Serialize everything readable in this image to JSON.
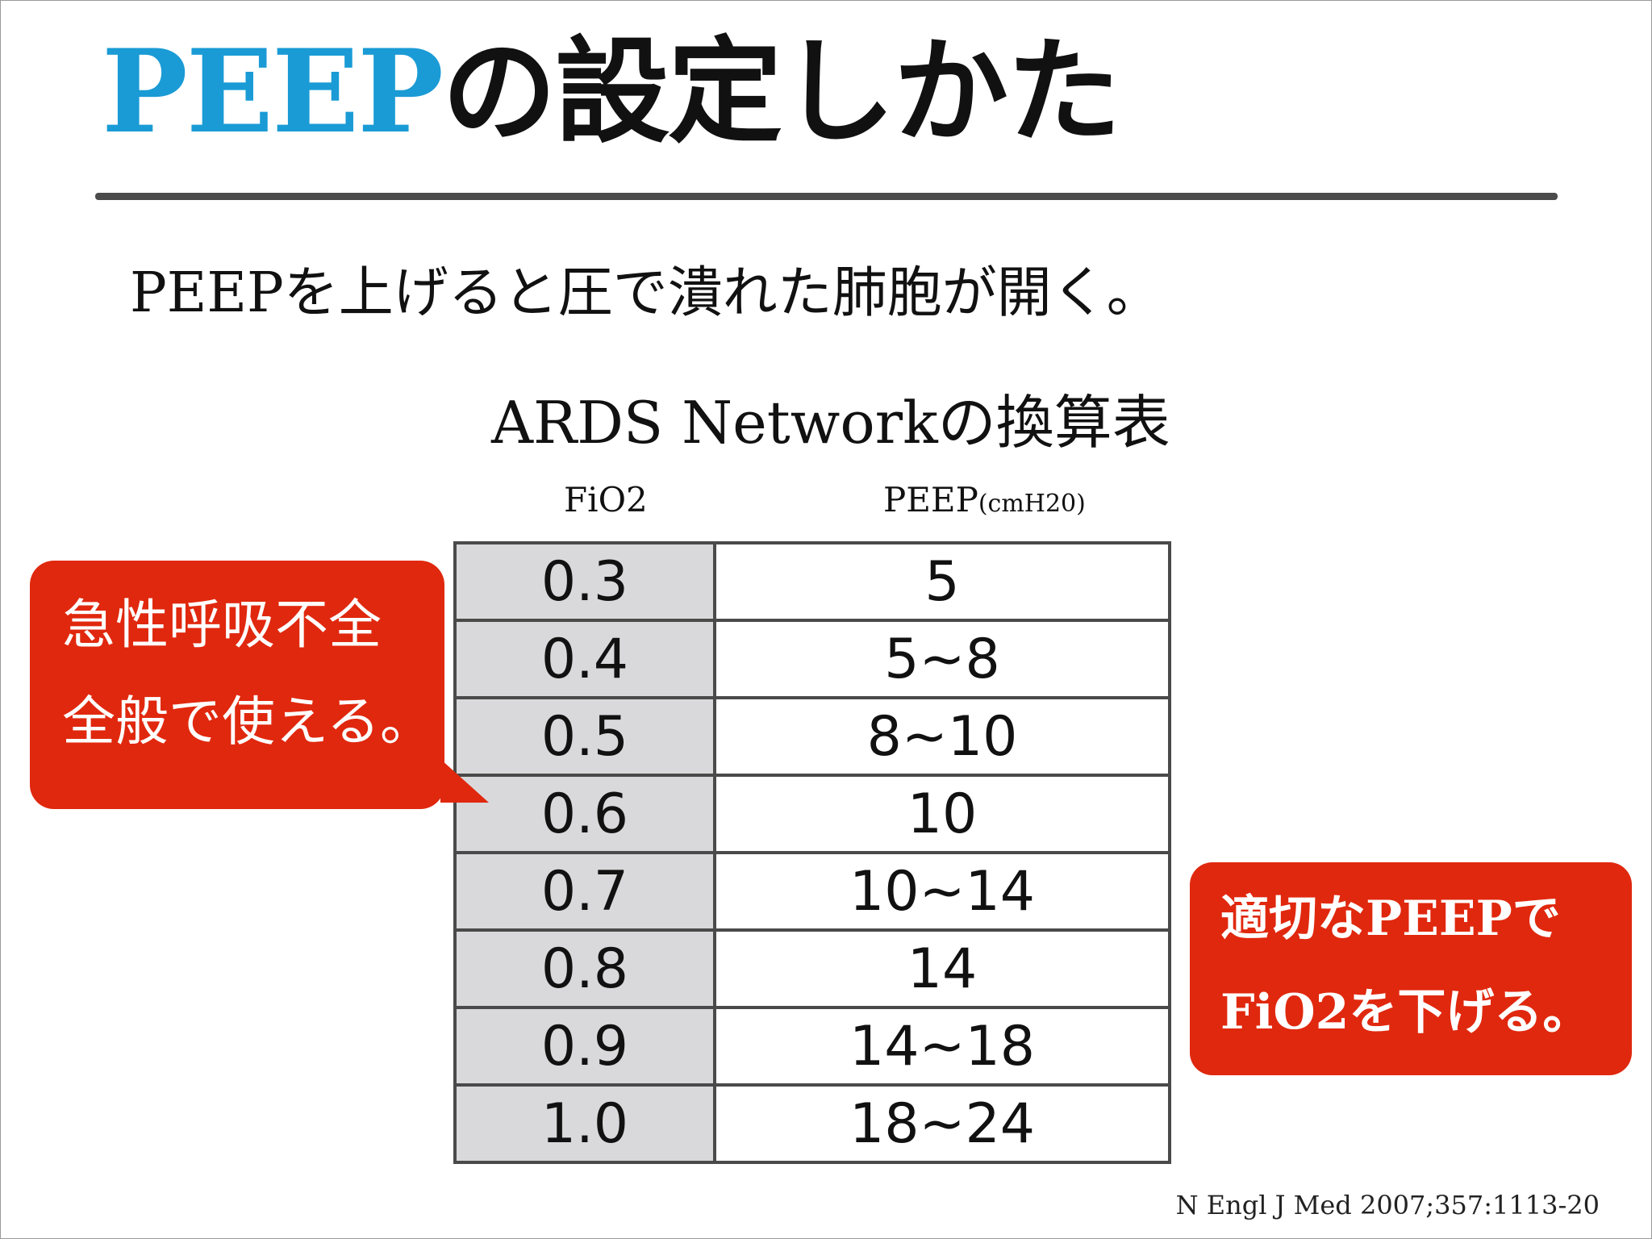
{
  "title": {
    "accent": "PEEP",
    "rest": "の設定しかた"
  },
  "subtitle": "PEEPを上げると圧で潰れた肺胞が開く。",
  "table": {
    "caption": "ARDS Networkの換算表",
    "headers": {
      "fio2": "FiO2",
      "peep_main": "PEEP",
      "peep_unit": "(cmH20)"
    },
    "rows": [
      {
        "fio2": "0.3",
        "peep": "5"
      },
      {
        "fio2": "0.4",
        "peep": "5~8"
      },
      {
        "fio2": "0.5",
        "peep": "8~10"
      },
      {
        "fio2": "0.6",
        "peep": "10"
      },
      {
        "fio2": "0.7",
        "peep": "10~14"
      },
      {
        "fio2": "0.8",
        "peep": "14"
      },
      {
        "fio2": "0.9",
        "peep": "14~18"
      },
      {
        "fio2": "1.0",
        "peep": "18~24"
      }
    ]
  },
  "callouts": {
    "left": [
      "急性呼吸不全",
      "全般で使える。"
    ],
    "right": [
      "適切なPEEPで",
      "FiO2を下げる。"
    ]
  },
  "citation": "N Engl J Med 2007;357:1113-20",
  "colors": {
    "accent": "#1a9bd5",
    "callout_bg": "#e0280e",
    "fio2_column_bg": "#d9d9db",
    "rule": "#4b4b4b"
  }
}
